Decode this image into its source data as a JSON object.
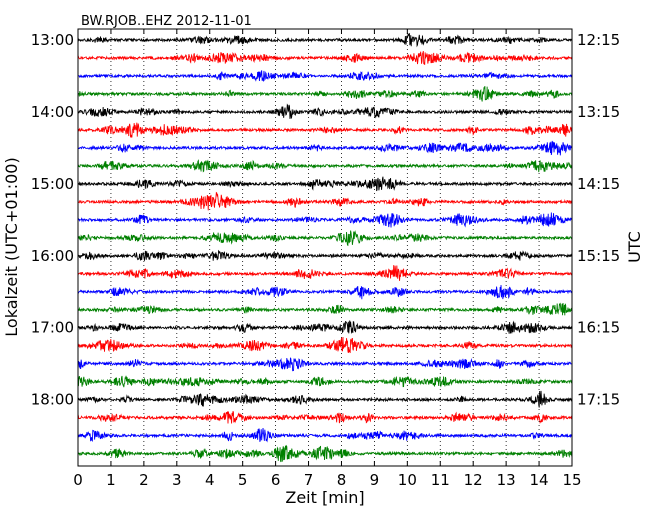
{
  "chart_data": {
    "type": "line",
    "title": "BW.RJOB..EHZ 2012-11-01",
    "xlabel": "Zeit  [min]",
    "ylabel_left": "Lokalzeit (UTC+01:00)",
    "ylabel_right": "UTC",
    "x_range": [
      0,
      15
    ],
    "x_ticks": [
      0,
      1,
      2,
      3,
      4,
      5,
      6,
      7,
      8,
      9,
      10,
      11,
      12,
      13,
      14,
      15
    ],
    "trace_interval_minutes": 15,
    "first_trace_local": "13:00",
    "left_labels": [
      "13:00",
      "14:00",
      "15:00",
      "16:00",
      "17:00",
      "18:00"
    ],
    "right_labels": [
      "12:15",
      "13:15",
      "14:15",
      "15:15",
      "16:15",
      "17:15"
    ],
    "colors": [
      "#000000",
      "#ff0000",
      "#0000ff",
      "#008000"
    ],
    "grid": "vertical dotted",
    "series": [
      {
        "start_local": "13:00",
        "color": "#000000"
      },
      {
        "start_local": "13:15",
        "color": "#ff0000"
      },
      {
        "start_local": "13:30",
        "color": "#0000ff"
      },
      {
        "start_local": "13:45",
        "color": "#008000"
      },
      {
        "start_local": "14:00",
        "color": "#000000"
      },
      {
        "start_local": "14:15",
        "color": "#ff0000"
      },
      {
        "start_local": "14:30",
        "color": "#0000ff"
      },
      {
        "start_local": "14:45",
        "color": "#008000"
      },
      {
        "start_local": "15:00",
        "color": "#000000"
      },
      {
        "start_local": "15:15",
        "color": "#ff0000"
      },
      {
        "start_local": "15:30",
        "color": "#0000ff"
      },
      {
        "start_local": "15:45",
        "color": "#008000"
      },
      {
        "start_local": "16:00",
        "color": "#000000"
      },
      {
        "start_local": "16:15",
        "color": "#ff0000"
      },
      {
        "start_local": "16:30",
        "color": "#0000ff"
      },
      {
        "start_local": "16:45",
        "color": "#008000"
      },
      {
        "start_local": "17:00",
        "color": "#000000"
      },
      {
        "start_local": "17:15",
        "color": "#ff0000"
      },
      {
        "start_local": "17:30",
        "color": "#0000ff"
      },
      {
        "start_local": "17:45",
        "color": "#008000"
      },
      {
        "start_local": "18:00",
        "color": "#000000"
      },
      {
        "start_local": "18:15",
        "color": "#ff0000"
      },
      {
        "start_local": "18:30",
        "color": "#0000ff"
      },
      {
        "start_local": "18:45",
        "color": "#008000"
      }
    ]
  }
}
